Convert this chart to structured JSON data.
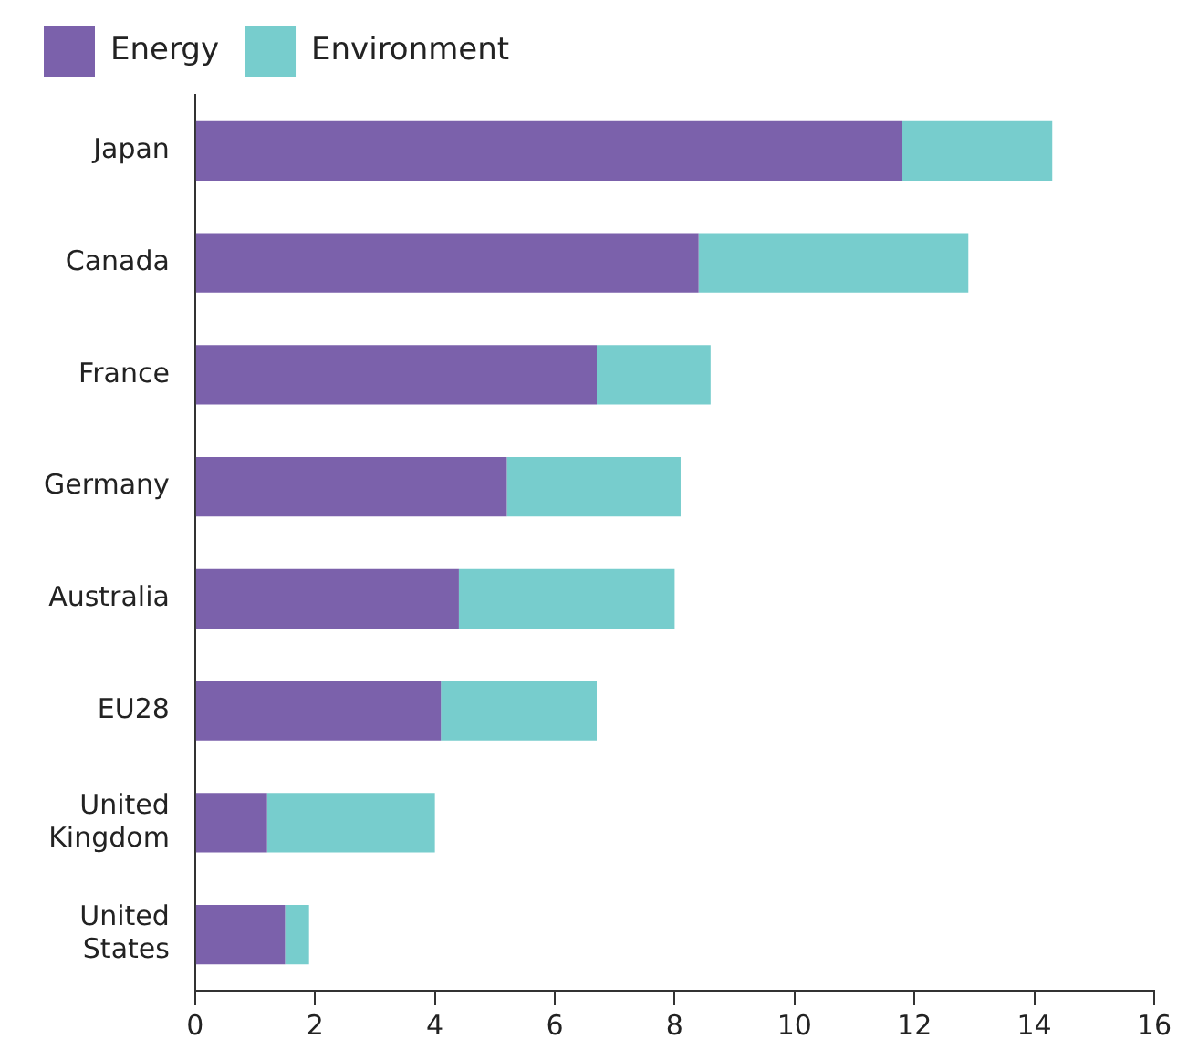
{
  "chart_data": {
    "type": "bar",
    "orientation": "horizontal",
    "stacked": true,
    "categories": [
      "Japan",
      "Canada",
      "France",
      "Germany",
      "Australia",
      "EU28",
      "United Kingdom",
      "United States"
    ],
    "series": [
      {
        "name": "Energy",
        "color": "#7b61ab",
        "values": [
          11.8,
          8.4,
          6.7,
          5.2,
          4.4,
          4.1,
          1.2,
          1.5
        ]
      },
      {
        "name": "Environment",
        "color": "#77cdcd",
        "values": [
          2.5,
          4.5,
          1.9,
          2.9,
          3.6,
          2.6,
          2.8,
          0.4
        ]
      }
    ],
    "xlim": [
      0,
      16
    ],
    "xticks": [
      0,
      2,
      4,
      6,
      8,
      10,
      12,
      14,
      16
    ],
    "grid": false,
    "legend": "top left"
  }
}
